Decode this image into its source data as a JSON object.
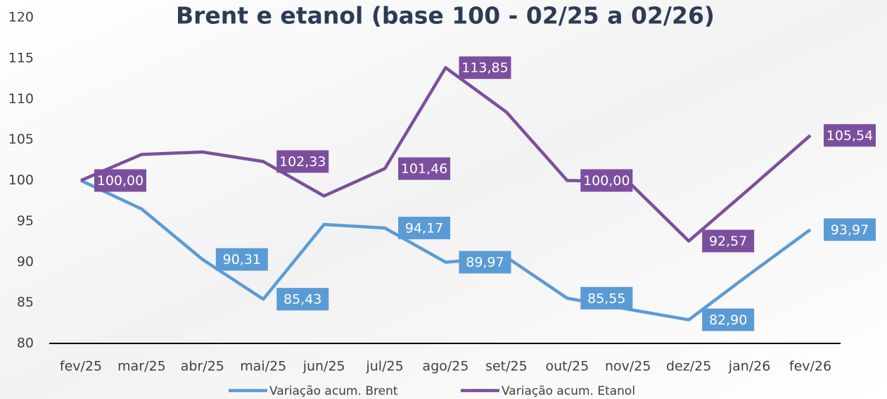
{
  "chart_data": {
    "type": "line",
    "title": "Brent e etanol (base 100 - 02/25 a 02/26)",
    "categories": [
      "fev/25",
      "mar/25",
      "abr/25",
      "mai/25",
      "jun/25",
      "jul/25",
      "ago/25",
      "set/25",
      "out/25",
      "nov/25",
      "dez/25",
      "jan/26",
      "fev/26"
    ],
    "series": [
      {
        "name": "Variação acum. Brent",
        "color": "#5b9bd5",
        "values": [
          100,
          96.5,
          90.31,
          85.43,
          94.6,
          94.17,
          89.97,
          90.6,
          85.55,
          84.2,
          82.9,
          88.5,
          93.97
        ],
        "value_labels": [
          null,
          null,
          "90,31",
          "85,43",
          null,
          "94,17",
          "89,97",
          null,
          "85,55",
          null,
          "82,90",
          null,
          "93,97"
        ]
      },
      {
        "name": "Variação acum. Etanol",
        "color": "#7b4f9d",
        "values": [
          100,
          103.2,
          103.5,
          102.33,
          98.1,
          101.46,
          113.85,
          108.4,
          100,
          99.9,
          92.57,
          99,
          105.54
        ],
        "value_labels": [
          "100,00",
          null,
          null,
          "102,33",
          null,
          "101,46",
          "113,85",
          null,
          "100,00",
          null,
          "92,57",
          null,
          "105,54"
        ]
      }
    ],
    "ylim": [
      80,
      120
    ],
    "yticks": [
      80,
      85,
      90,
      95,
      100,
      105,
      110,
      115,
      120
    ],
    "grid": false
  }
}
